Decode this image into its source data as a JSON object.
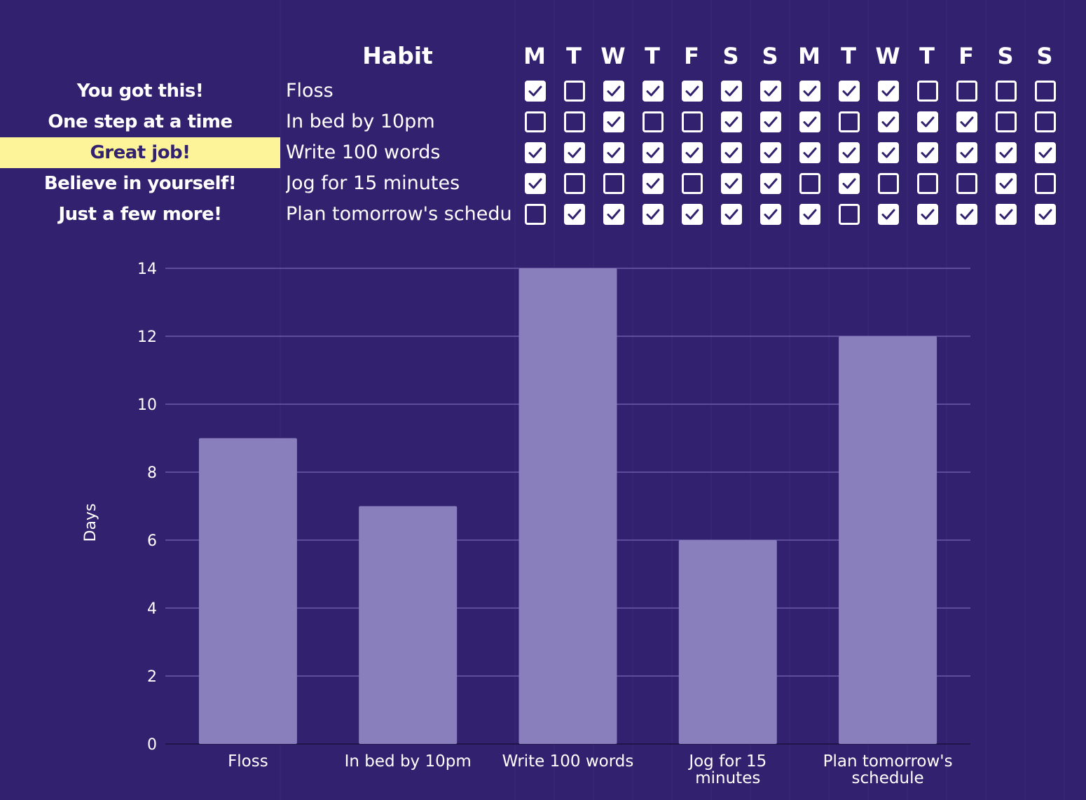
{
  "tracker": {
    "habit_header": "Habit",
    "day_letters": [
      "M",
      "T",
      "W",
      "T",
      "F",
      "S",
      "S",
      "M",
      "T",
      "W",
      "T",
      "F",
      "S",
      "S"
    ],
    "highlight_color": "#fdf49a",
    "rows": [
      {
        "motto": "You got this!",
        "habit": "Floss",
        "highlighted": false,
        "checks": [
          true,
          false,
          true,
          true,
          true,
          true,
          true,
          true,
          true,
          true,
          false,
          false,
          false,
          false
        ]
      },
      {
        "motto": "One step at a time",
        "habit": "In bed by 10pm",
        "highlighted": false,
        "checks": [
          false,
          false,
          true,
          false,
          false,
          true,
          true,
          true,
          false,
          true,
          true,
          true,
          false,
          false
        ]
      },
      {
        "motto": "Great job!",
        "habit": "Write 100 words",
        "highlighted": true,
        "checks": [
          true,
          true,
          true,
          true,
          true,
          true,
          true,
          true,
          true,
          true,
          true,
          true,
          true,
          true
        ]
      },
      {
        "motto": "Believe in yourself!",
        "habit": "Jog for 15 minutes",
        "highlighted": false,
        "checks": [
          true,
          false,
          false,
          true,
          false,
          true,
          true,
          false,
          true,
          false,
          false,
          false,
          true,
          false
        ]
      },
      {
        "motto": "Just a few more!",
        "habit": "Plan tomorrow's schedule",
        "highlighted": false,
        "checks": [
          false,
          true,
          true,
          true,
          true,
          true,
          true,
          true,
          false,
          true,
          true,
          true,
          true,
          true
        ]
      }
    ]
  },
  "colors": {
    "background": "#32216e",
    "bar": "#8a7fbd",
    "gridline": "#6a5aa8",
    "check_mark": "#32216e"
  },
  "chart_data": {
    "type": "bar",
    "categories": [
      "Floss",
      "In bed by 10pm",
      "Write 100 words",
      "Jog for 15 minutes",
      "Plan tomorrow's schedule"
    ],
    "category_lines": [
      [
        "Floss"
      ],
      [
        "In bed by 10pm"
      ],
      [
        "Write 100 words"
      ],
      [
        "Jog for 15",
        "minutes"
      ],
      [
        "Plan tomorrow's",
        "schedule"
      ]
    ],
    "values": [
      9,
      7,
      14,
      6,
      12
    ],
    "title": "",
    "xlabel": "",
    "ylabel": "Days",
    "ylim": [
      0,
      14
    ],
    "yticks": [
      0,
      2,
      4,
      6,
      8,
      10,
      12,
      14
    ],
    "grid": true,
    "legend": "none"
  }
}
